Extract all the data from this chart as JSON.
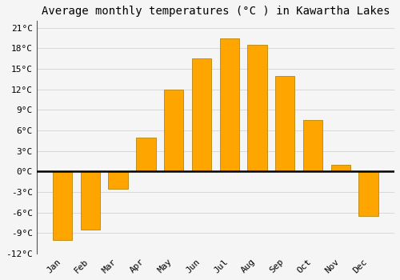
{
  "title": "Average monthly temperatures (°C ) in Kawartha Lakes",
  "months": [
    "Jan",
    "Feb",
    "Mar",
    "Apr",
    "May",
    "Jun",
    "Jul",
    "Aug",
    "Sep",
    "Oct",
    "Nov",
    "Dec"
  ],
  "values": [
    -10,
    -8.5,
    -2.5,
    5.0,
    12.0,
    16.5,
    19.5,
    18.5,
    14.0,
    7.5,
    1.0,
    -6.5
  ],
  "bar_color": "#FFA500",
  "bar_edge_color": "#B8860B",
  "ylim": [
    -12,
    22
  ],
  "yticks": [
    -12,
    -9,
    -6,
    -3,
    0,
    3,
    6,
    9,
    12,
    15,
    18,
    21
  ],
  "ytick_labels": [
    "-12°C",
    "-9°C",
    "-6°C",
    "-3°C",
    "0°C",
    "3°C",
    "6°C",
    "9°C",
    "12°C",
    "15°C",
    "18°C",
    "21°C"
  ],
  "background_color": "#f5f5f5",
  "grid_color": "#d8d8d8",
  "zero_line_color": "#000000",
  "left_spine_color": "#555555",
  "title_fontsize": 10,
  "tick_fontsize": 8,
  "bar_width": 0.7
}
